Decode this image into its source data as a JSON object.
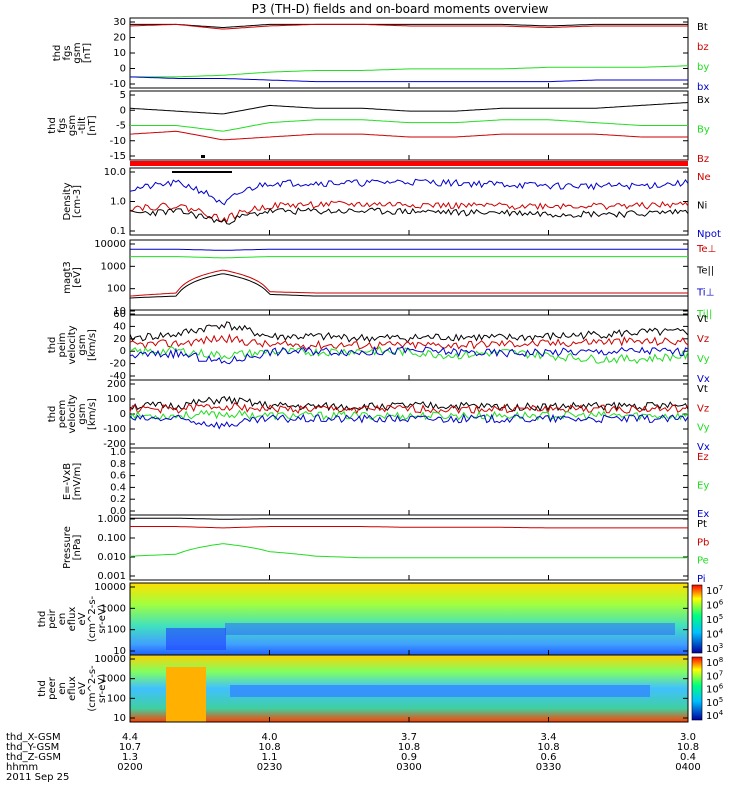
{
  "title": "P3 (TH-D) fields and on-board moments overview",
  "colors": {
    "black": "#000000",
    "red": "#cc0000",
    "green": "#22dd22",
    "blue": "#0000cc",
    "statusbar": "#ff0000"
  },
  "chart_data": [
    {
      "type": "line",
      "ylabel": [
        "thd",
        "fgs",
        "gsm",
        "[nT]"
      ],
      "yticks": [
        "30",
        "20",
        "10",
        "0",
        "-10"
      ],
      "ylim": [
        -12,
        32
      ],
      "legend": [
        {
          "name": "Bt",
          "color": "black"
        },
        {
          "name": "bz",
          "color": "red"
        },
        {
          "name": "by",
          "color": "green"
        },
        {
          "name": "bx",
          "color": "blue"
        }
      ],
      "series": [
        {
          "name": "Bt",
          "color": "black",
          "values": [
            28,
            28,
            26,
            28,
            28,
            28,
            28,
            28,
            28,
            27,
            28,
            28,
            28
          ]
        },
        {
          "name": "bz",
          "color": "red",
          "values": [
            27,
            28,
            25,
            27,
            28,
            28,
            27,
            27,
            27,
            26,
            27,
            27,
            27
          ]
        },
        {
          "name": "by",
          "color": "green",
          "values": [
            -5,
            -5,
            -4,
            -2,
            -1,
            -1,
            0,
            0,
            0,
            1,
            1,
            1,
            2
          ]
        },
        {
          "name": "bx",
          "color": "blue",
          "values": [
            -5,
            -6,
            -6,
            -7,
            -8,
            -8,
            -8,
            -8,
            -8,
            -8,
            -7,
            -7,
            -7
          ]
        }
      ]
    },
    {
      "type": "line",
      "ylabel": [
        "thd",
        "fgs",
        "gsm",
        "-tilt",
        "[nT]"
      ],
      "yticks": [
        "5",
        "0",
        "-5",
        "-10",
        "-15"
      ],
      "ylim": [
        -17,
        7
      ],
      "legend": [
        {
          "name": "Bx",
          "color": "black"
        },
        {
          "name": "By",
          "color": "green"
        },
        {
          "name": "Bz",
          "color": "red"
        }
      ],
      "series": [
        {
          "name": "Bx",
          "color": "black",
          "values": [
            1,
            0,
            -1,
            2,
            1,
            1,
            0,
            0,
            1,
            1,
            1,
            2,
            3
          ]
        },
        {
          "name": "By",
          "color": "green",
          "values": [
            -5,
            -5,
            -7,
            -4,
            -3,
            -3,
            -4,
            -4,
            -3,
            -3,
            -4,
            -5,
            -5
          ]
        },
        {
          "name": "Bz",
          "color": "red",
          "values": [
            -8,
            -7,
            -10,
            -9,
            -8,
            -8,
            -9,
            -9,
            -8,
            -8,
            -8,
            -9,
            -9
          ]
        }
      ]
    },
    {
      "type": "line",
      "ylabel": [
        "Density",
        "[cm-3]"
      ],
      "yticks": [
        "10.0",
        "1.0",
        "0.1"
      ],
      "log": true,
      "ylim": [
        0.1,
        15
      ],
      "legend": [
        {
          "name": "Ne",
          "color": "red"
        },
        {
          "name": "Ni",
          "color": "black"
        },
        {
          "name": "Npot",
          "color": "blue"
        }
      ],
      "series": [
        {
          "name": "Npot",
          "color": "blue",
          "values": [
            3,
            5,
            0.8,
            5,
            5,
            5,
            5.5,
            5,
            4.5,
            4,
            4,
            4,
            5
          ]
        },
        {
          "name": "Ne",
          "color": "red",
          "values": [
            0.8,
            0.9,
            0.3,
            0.9,
            1,
            1,
            1,
            0.9,
            0.9,
            0.9,
            0.9,
            0.9,
            1
          ]
        },
        {
          "name": "Ni",
          "color": "black",
          "values": [
            0.5,
            0.6,
            0.25,
            0.6,
            0.6,
            0.6,
            0.6,
            0.55,
            0.55,
            0.5,
            0.5,
            0.5,
            0.6
          ]
        }
      ]
    },
    {
      "type": "line",
      "ylabel": [
        "magt3",
        "[eV]"
      ],
      "yticks": [
        "10000",
        "1000",
        "100",
        "10"
      ],
      "log": true,
      "ylim": [
        10,
        12000
      ],
      "legend": [
        {
          "name": "Te⊥",
          "color": "red"
        },
        {
          "name": "Te||",
          "color": "black"
        },
        {
          "name": "Ti⊥",
          "color": "blue"
        },
        {
          "name": "Ti||",
          "color": "green"
        }
      ],
      "series": [
        {
          "name": "Ti⊥",
          "color": "blue",
          "values": [
            5000,
            5000,
            4500,
            5000,
            5000,
            5000,
            5000,
            5000,
            5000,
            5000,
            5000,
            5000,
            5000
          ]
        },
        {
          "name": "Ti||",
          "color": "green",
          "values": [
            2500,
            2500,
            2200,
            2500,
            2500,
            2500,
            2500,
            2500,
            2500,
            2500,
            2500,
            2500,
            2500
          ]
        },
        {
          "name": "Te⊥",
          "color": "red",
          "values": [
            60,
            80,
            700,
            90,
            80,
            80,
            80,
            80,
            80,
            80,
            80,
            80,
            80
          ]
        },
        {
          "name": "Te||",
          "color": "black",
          "values": [
            50,
            60,
            500,
            70,
            60,
            60,
            60,
            60,
            60,
            60,
            60,
            60,
            60
          ]
        }
      ]
    },
    {
      "type": "line",
      "ylabel": [
        "thd",
        "peim",
        "velocity",
        "gsm",
        "[km/s]"
      ],
      "yticks": [
        "60",
        "40",
        "20",
        "0",
        "-20",
        "-40"
      ],
      "ylim": [
        -40,
        60
      ],
      "legend": [
        {
          "name": "Vt",
          "color": "black"
        },
        {
          "name": "Vz",
          "color": "red"
        },
        {
          "name": "Vy",
          "color": "green"
        },
        {
          "name": "Vx",
          "color": "blue"
        }
      ],
      "series": [
        {
          "name": "Vt",
          "color": "black",
          "values": [
            20,
            25,
            40,
            22,
            22,
            20,
            20,
            22,
            20,
            22,
            25,
            28,
            28
          ]
        },
        {
          "name": "Vz",
          "color": "red",
          "values": [
            10,
            12,
            20,
            10,
            10,
            10,
            10,
            10,
            12,
            12,
            15,
            15,
            15
          ]
        },
        {
          "name": "Vy",
          "color": "green",
          "values": [
            0,
            2,
            -5,
            0,
            0,
            2,
            0,
            -5,
            0,
            -5,
            -10,
            -10,
            -5
          ]
        },
        {
          "name": "Vx",
          "color": "blue",
          "values": [
            -5,
            -2,
            -15,
            0,
            2,
            0,
            2,
            0,
            -2,
            0,
            0,
            2,
            0
          ]
        }
      ]
    },
    {
      "type": "line",
      "ylabel": [
        "thd",
        "peem",
        "velocity",
        "gsm",
        "[km/s]"
      ],
      "yticks": [
        "200",
        "100",
        "0",
        "-100",
        "-200"
      ],
      "ylim": [
        -200,
        220
      ],
      "legend": [
        {
          "name": "Vt",
          "color": "black"
        },
        {
          "name": "Vz",
          "color": "red"
        },
        {
          "name": "Vy",
          "color": "green"
        },
        {
          "name": "Vx",
          "color": "blue"
        }
      ],
      "series": [
        {
          "name": "Vt",
          "color": "black",
          "values": [
            60,
            60,
            100,
            60,
            55,
            55,
            60,
            60,
            55,
            55,
            60,
            60,
            60
          ]
        },
        {
          "name": "Vz",
          "color": "red",
          "values": [
            40,
            40,
            60,
            40,
            40,
            40,
            40,
            40,
            40,
            40,
            40,
            40,
            40
          ]
        },
        {
          "name": "Vy",
          "color": "green",
          "values": [
            0,
            0,
            10,
            0,
            0,
            0,
            0,
            0,
            0,
            0,
            0,
            0,
            0
          ]
        },
        {
          "name": "Vx",
          "color": "blue",
          "values": [
            -20,
            -20,
            -60,
            -20,
            -20,
            -20,
            -20,
            -20,
            -20,
            -20,
            -20,
            -20,
            -20
          ]
        }
      ]
    },
    {
      "type": "line",
      "ylabel": [
        "E=-VxB",
        "[mV/m]"
      ],
      "yticks": [
        "1.0",
        "0.8",
        "0.6",
        "0.4",
        "0.2",
        "0.0"
      ],
      "ylim": [
        0,
        1
      ],
      "legend": [
        {
          "name": "Ez",
          "color": "red"
        },
        {
          "name": "Ey",
          "color": "green"
        },
        {
          "name": "Ex",
          "color": "blue"
        }
      ],
      "series": []
    },
    {
      "type": "line",
      "ylabel": [
        "Pressure",
        "[nPa]"
      ],
      "yticks": [
        "1.000",
        "0.100",
        "0.010",
        "0.001"
      ],
      "log": true,
      "ylim": [
        0.0008,
        1.3
      ],
      "legend": [
        {
          "name": "Pt",
          "color": "black"
        },
        {
          "name": "Pb",
          "color": "red"
        },
        {
          "name": "Pe",
          "color": "green"
        },
        {
          "name": "Pi",
          "color": "blue"
        }
      ],
      "series": [
        {
          "name": "Pt",
          "color": "black",
          "values": [
            0.9,
            0.9,
            0.8,
            0.85,
            0.85,
            0.85,
            0.85,
            0.85,
            0.85,
            0.85,
            0.85,
            0.85,
            0.85
          ]
        },
        {
          "name": "Pb",
          "color": "red",
          "values": [
            0.35,
            0.35,
            0.3,
            0.35,
            0.35,
            0.35,
            0.32,
            0.32,
            0.32,
            0.3,
            0.3,
            0.3,
            0.3
          ]
        },
        {
          "name": "Pe",
          "color": "green",
          "values": [
            0.012,
            0.015,
            0.05,
            0.02,
            0.012,
            0.01,
            0.01,
            0.01,
            0.01,
            0.01,
            0.01,
            0.01,
            0.01
          ]
        }
      ]
    },
    {
      "type": "heatmap",
      "ylabel": [
        "thd",
        "peir",
        "en",
        "eflux",
        "eV",
        "(cm^2-s-",
        "sr-eV)"
      ],
      "yticks": [
        "10000",
        "1000",
        "100",
        "10"
      ],
      "colorbar": [
        "10^7",
        "10^6",
        "10^5",
        "10^4",
        "10^3"
      ]
    },
    {
      "type": "heatmap",
      "ylabel": [
        "thd",
        "peer",
        "en",
        "eflux",
        "eV",
        "(cm^2-s-",
        "sr-eV)"
      ],
      "yticks": [
        "10000",
        "1000",
        "100",
        "10"
      ],
      "colorbar": [
        "10^8",
        "10^7",
        "10^6",
        "10^5",
        "10^4"
      ]
    }
  ],
  "footer": {
    "rows": [
      {
        "label": "thd_X-GSM",
        "values": [
          "4.4",
          "4.0",
          "3.7",
          "3.4",
          "3.0"
        ]
      },
      {
        "label": "thd_Y-GSM",
        "values": [
          "10.7",
          "10.8",
          "10.8",
          "10.8",
          "10.8"
        ]
      },
      {
        "label": "thd_Z-GSM",
        "values": [
          "1.3",
          "1.1",
          "0.9",
          "0.6",
          "0.4"
        ]
      },
      {
        "label": "hhmm",
        "values": [
          "0200",
          "0230",
          "0300",
          "0330",
          "0400"
        ]
      }
    ],
    "date": "2011 Sep 25"
  }
}
